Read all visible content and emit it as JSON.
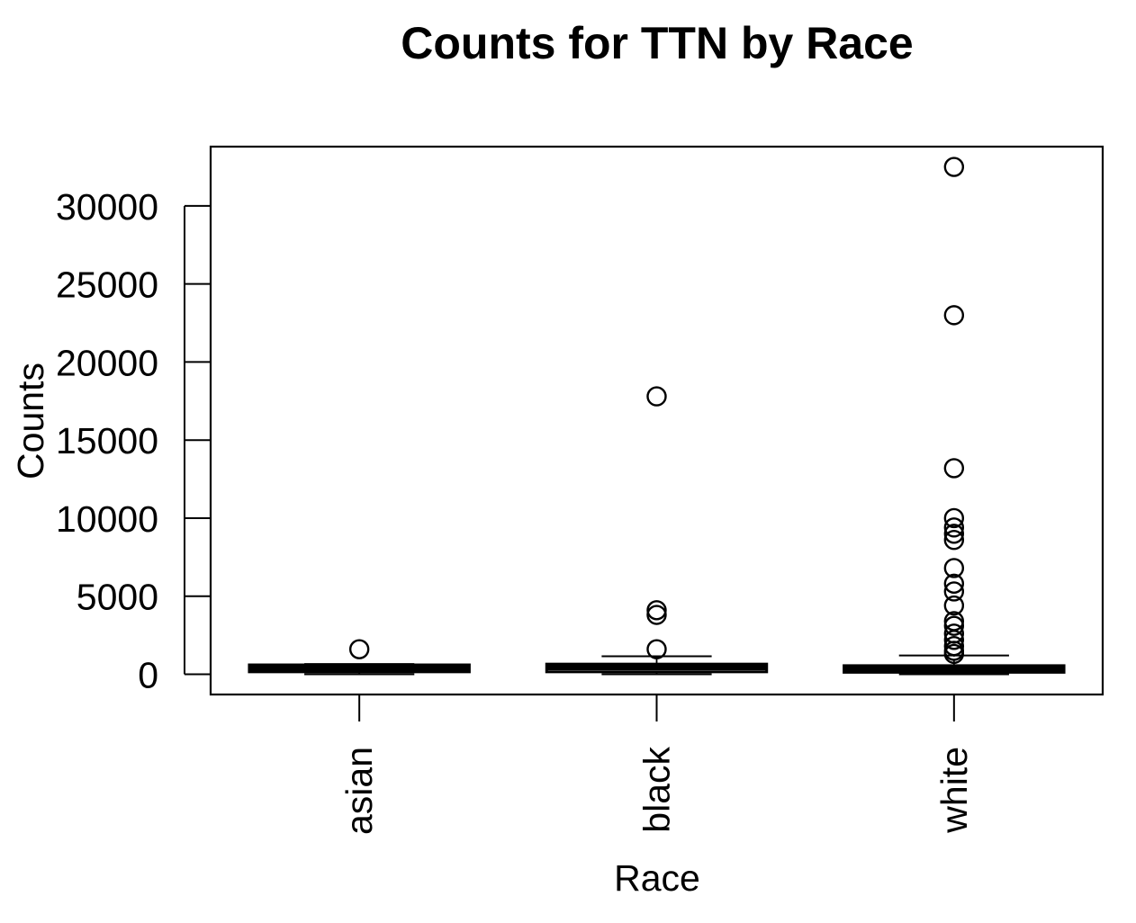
{
  "chart_data": {
    "type": "box",
    "title": "Counts for TTN by Race",
    "xlabel": "Race",
    "ylabel": "Counts",
    "categories": [
      "asian",
      "black",
      "white"
    ],
    "yticks": [
      0,
      5000,
      10000,
      15000,
      20000,
      25000,
      30000
    ],
    "ylim": [
      -1300,
      33800
    ],
    "grid": false,
    "boxes": [
      {
        "name": "asian",
        "q1": 150,
        "median": 420,
        "q3": 600,
        "whisker_low": 0,
        "whisker_high": 650,
        "outliers": [
          1600
        ]
      },
      {
        "name": "black",
        "q1": 150,
        "median": 450,
        "q3": 650,
        "whisker_low": 0,
        "whisker_high": 1150,
        "outliers": [
          1600,
          3800,
          4100,
          17800
        ]
      },
      {
        "name": "white",
        "q1": 120,
        "median": 400,
        "q3": 550,
        "whisker_low": 0,
        "whisker_high": 1200,
        "outliers": [
          1300,
          1500,
          1800,
          2200,
          2600,
          3100,
          3400,
          4400,
          5300,
          5800,
          6800,
          8600,
          9000,
          9400,
          10000,
          13200,
          23000,
          32500
        ]
      }
    ]
  }
}
